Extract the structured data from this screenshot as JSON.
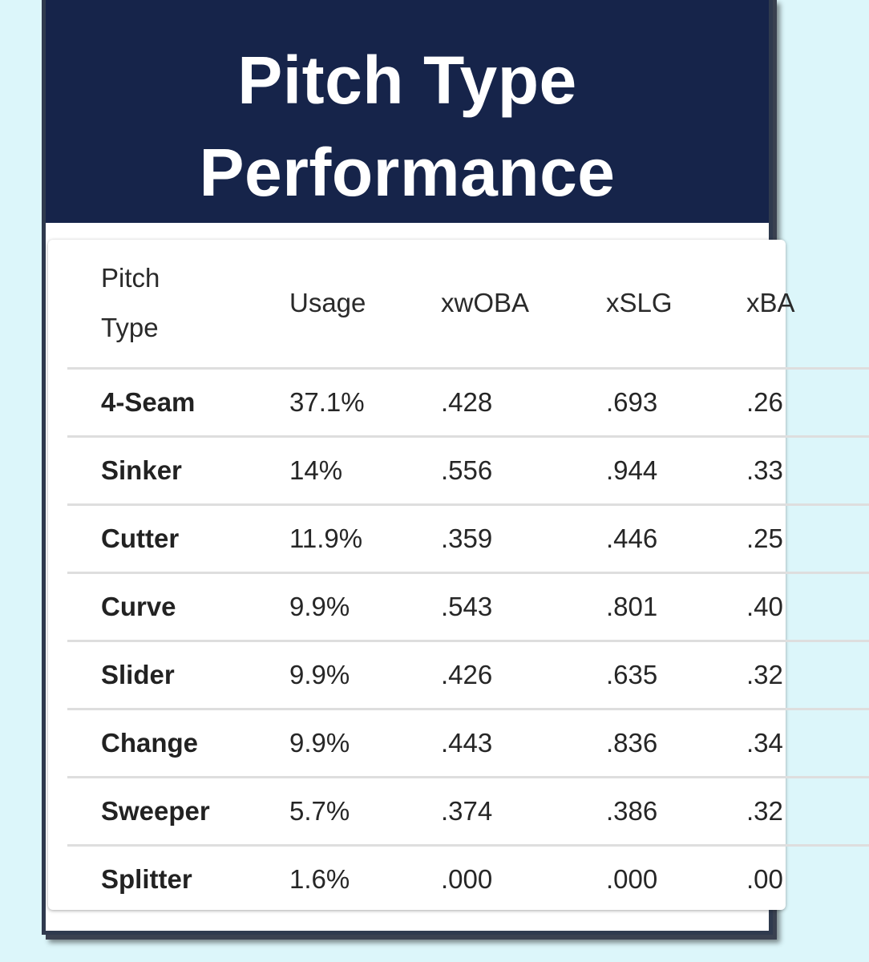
{
  "title_lines": [
    "Pitch Type",
    "Performance"
  ],
  "table": {
    "headers": {
      "pitch_line1": "Pitch",
      "pitch_line2": "Type",
      "usage": "Usage",
      "xwoba": "xwOBA",
      "xslg": "xSLG",
      "xba": "xBA"
    },
    "rows": [
      {
        "pitch": "4-Seam",
        "usage": "37.1%",
        "xwoba": ".428",
        "xslg": ".693",
        "xba": ".26"
      },
      {
        "pitch": "Sinker",
        "usage": "14%",
        "xwoba": ".556",
        "xslg": ".944",
        "xba": ".33"
      },
      {
        "pitch": "Cutter",
        "usage": "11.9%",
        "xwoba": ".359",
        "xslg": ".446",
        "xba": ".25"
      },
      {
        "pitch": "Curve",
        "usage": "9.9%",
        "xwoba": ".543",
        "xslg": ".801",
        "xba": ".40"
      },
      {
        "pitch": "Slider",
        "usage": "9.9%",
        "xwoba": ".426",
        "xslg": ".635",
        "xba": ".32"
      },
      {
        "pitch": "Change",
        "usage": "9.9%",
        "xwoba": ".443",
        "xslg": ".836",
        "xba": ".34"
      },
      {
        "pitch": "Sweeper",
        "usage": "5.7%",
        "xwoba": ".374",
        "xslg": ".386",
        "xba": ".32"
      },
      {
        "pitch": "Splitter",
        "usage": "1.6%",
        "xwoba": ".000",
        "xslg": ".000",
        "xba": ".00"
      }
    ]
  },
  "colors": {
    "header_bg": "#16244a",
    "page_bg": "#dcf6fa",
    "card_border": "#2f3a4e"
  }
}
